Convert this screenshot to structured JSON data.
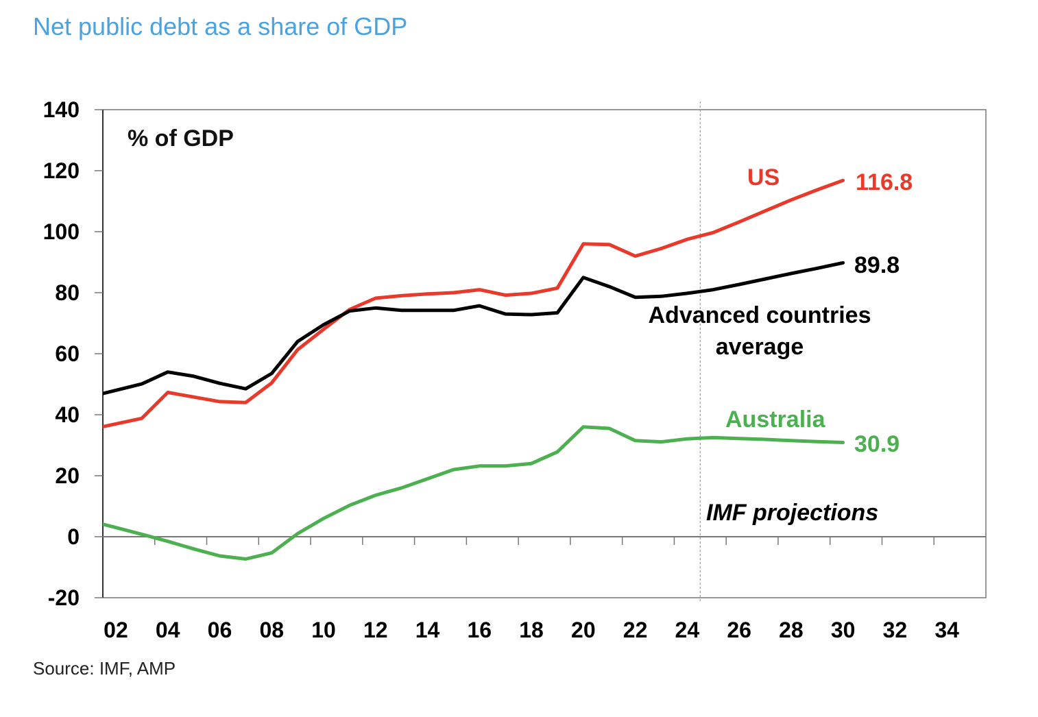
{
  "header": {
    "title": "Net public debt as a share of GDP"
  },
  "footer": {
    "source": "Source: IMF, AMP"
  },
  "chart_data": {
    "type": "line",
    "title": "Net public debt as a share of GDP",
    "xlabel": "",
    "ylabel": "% of GDP",
    "unit_label": "% of GDP",
    "xlim": [
      2001.5,
      2035.5
    ],
    "ylim": [
      -20,
      140
    ],
    "yticks": [
      -20,
      0,
      20,
      40,
      60,
      80,
      100,
      120,
      140
    ],
    "ytick_labels": [
      "-20",
      "0",
      "20",
      "40",
      "60",
      "80",
      "100",
      "120",
      "140"
    ],
    "xticks": [
      2002,
      2004,
      2006,
      2008,
      2010,
      2012,
      2014,
      2016,
      2018,
      2020,
      2022,
      2024,
      2026,
      2028,
      2030,
      2032,
      2034
    ],
    "xtick_labels": [
      "02",
      "04",
      "06",
      "08",
      "10",
      "12",
      "14",
      "16",
      "18",
      "20",
      "22",
      "24",
      "26",
      "28",
      "30",
      "32",
      "34"
    ],
    "grid": false,
    "legend": "inline-labels",
    "projection_start": 2024.5,
    "projection_label": "IMF projections",
    "x": [
      2002,
      2003,
      2004,
      2005,
      2006,
      2007,
      2008,
      2009,
      2010,
      2011,
      2012,
      2013,
      2014,
      2015,
      2016,
      2017,
      2018,
      2019,
      2020,
      2021,
      2022,
      2023,
      2024,
      2025,
      2026,
      2027,
      2028,
      2029,
      2030
    ],
    "series": [
      {
        "name": "US",
        "label": "US",
        "end_label": "116.8",
        "color": "#e8392b",
        "values": [
          37,
          38.8,
          47.3,
          45.8,
          44.3,
          44,
          50.4,
          61.3,
          68,
          74.5,
          78.2,
          79,
          79.6,
          80,
          81,
          79.2,
          79.8,
          81.5,
          96,
          95.8,
          92,
          94.5,
          97.5,
          99.7,
          103.2,
          106.8,
          110.4,
          113.7,
          116.8
        ]
      },
      {
        "name": "Advanced countries average",
        "label_line1": "Advanced countries",
        "label_line2": "average",
        "end_label": "89.8",
        "color": "#000000",
        "values": [
          48,
          50.1,
          54,
          52.6,
          50.3,
          48.5,
          53.5,
          64,
          69.5,
          74,
          75,
          74.2,
          74.2,
          74.2,
          75.7,
          73,
          72.8,
          73.4,
          85,
          82,
          78.5,
          78.8,
          79.8,
          81,
          82.7,
          84.5,
          86.3,
          88,
          89.8
        ]
      },
      {
        "name": "Australia",
        "label": "Australia",
        "end_label": "30.9",
        "color": "#4caf50",
        "values": [
          3,
          0.8,
          -1.5,
          -4,
          -6.3,
          -7.3,
          -5.3,
          1,
          6,
          10.3,
          13.6,
          16,
          19,
          22,
          23.2,
          23.2,
          24,
          27.8,
          36,
          35.5,
          31.5,
          31.1,
          32.1,
          32.5,
          32.2,
          31.9,
          31.5,
          31.2,
          30.9
        ]
      }
    ]
  }
}
